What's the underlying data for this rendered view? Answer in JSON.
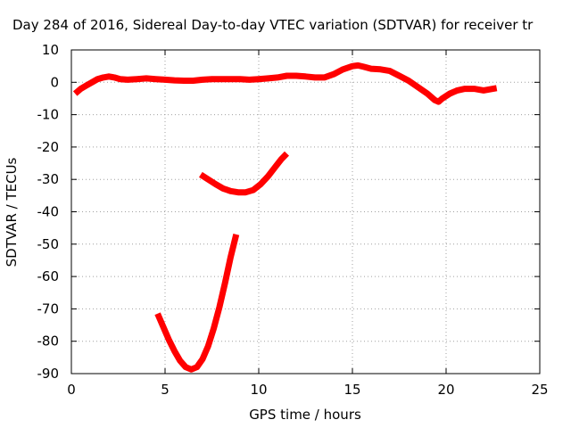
{
  "chart_data": {
    "type": "line",
    "title": "Day 284 of 2016, Sidereal Day-to-day VTEC variation (SDTVAR) for receiver tr",
    "xlabel": "GPS time / hours",
    "ylabel": "SDTVAR / TECUs",
    "xlim": [
      0,
      25
    ],
    "ylim": [
      -90,
      10
    ],
    "x_ticks": [
      0,
      5,
      10,
      15,
      20,
      25
    ],
    "x_tick_labels": [
      "0",
      "5",
      "10",
      "15",
      "20",
      "25"
    ],
    "y_ticks": [
      10,
      0,
      -10,
      -20,
      -30,
      -40,
      -50,
      -60,
      -70,
      -80,
      -90
    ],
    "y_tick_labels": [
      "10",
      "0",
      "-10",
      "-20",
      "-30",
      "-40",
      "-50",
      "-60",
      "-70",
      "-80",
      "-90"
    ],
    "grid": true,
    "grid_style": "dotted",
    "legend": "none",
    "series_color": "#ff0000",
    "series": [
      {
        "values": [
          [
            0.2,
            -3.5
          ],
          [
            0.5,
            -2.0
          ],
          [
            0.8,
            -1.0
          ],
          [
            1.1,
            0.0
          ],
          [
            1.4,
            1.0
          ],
          [
            1.7,
            1.5
          ],
          [
            2.0,
            1.8
          ],
          [
            2.3,
            1.5
          ],
          [
            2.6,
            1.0
          ],
          [
            3.0,
            0.8
          ],
          [
            3.5,
            1.0
          ],
          [
            4.0,
            1.2
          ],
          [
            4.5,
            1.0
          ],
          [
            5.0,
            0.8
          ],
          [
            5.5,
            0.6
          ],
          [
            6.0,
            0.5
          ],
          [
            6.5,
            0.5
          ],
          [
            7.0,
            0.8
          ],
          [
            7.5,
            1.0
          ],
          [
            8.0,
            1.0
          ],
          [
            8.5,
            1.0
          ],
          [
            9.0,
            1.0
          ],
          [
            9.5,
            0.8
          ],
          [
            10.0,
            1.0
          ],
          [
            10.5,
            1.2
          ],
          [
            11.0,
            1.5
          ],
          [
            11.5,
            2.0
          ],
          [
            12.0,
            2.0
          ],
          [
            12.5,
            1.8
          ],
          [
            13.0,
            1.5
          ],
          [
            13.5,
            1.5
          ],
          [
            14.0,
            2.5
          ],
          [
            14.5,
            4.0
          ],
          [
            15.0,
            5.0
          ],
          [
            15.3,
            5.2
          ],
          [
            15.6,
            4.8
          ],
          [
            16.0,
            4.2
          ],
          [
            16.5,
            4.0
          ],
          [
            17.0,
            3.5
          ],
          [
            17.5,
            2.0
          ],
          [
            18.0,
            0.5
          ],
          [
            18.5,
            -1.5
          ],
          [
            19.0,
            -3.5
          ],
          [
            19.4,
            -5.5
          ],
          [
            19.6,
            -6.0
          ],
          [
            19.8,
            -5.0
          ],
          [
            20.2,
            -3.5
          ],
          [
            20.6,
            -2.5
          ],
          [
            21.0,
            -2.0
          ],
          [
            21.5,
            -2.0
          ],
          [
            22.0,
            -2.5
          ],
          [
            22.3,
            -2.2
          ],
          [
            22.7,
            -1.8
          ]
        ]
      },
      {
        "values": [
          [
            6.9,
            -28.5
          ],
          [
            7.3,
            -30.0
          ],
          [
            7.7,
            -31.5
          ],
          [
            8.1,
            -32.8
          ],
          [
            8.5,
            -33.6
          ],
          [
            8.9,
            -34.0
          ],
          [
            9.3,
            -34.0
          ],
          [
            9.7,
            -33.3
          ],
          [
            10.1,
            -31.5
          ],
          [
            10.5,
            -29.0
          ],
          [
            10.9,
            -26.0
          ],
          [
            11.2,
            -23.8
          ],
          [
            11.5,
            -22.0
          ]
        ]
      },
      {
        "values": [
          [
            4.6,
            -71.5
          ],
          [
            4.9,
            -75.5
          ],
          [
            5.2,
            -79.5
          ],
          [
            5.5,
            -83.0
          ],
          [
            5.8,
            -86.0
          ],
          [
            6.1,
            -88.0
          ],
          [
            6.4,
            -88.7
          ],
          [
            6.7,
            -88.0
          ],
          [
            7.0,
            -85.5
          ],
          [
            7.3,
            -81.5
          ],
          [
            7.6,
            -76.0
          ],
          [
            7.9,
            -69.5
          ],
          [
            8.2,
            -62.0
          ],
          [
            8.5,
            -54.0
          ],
          [
            8.8,
            -47.0
          ]
        ]
      }
    ]
  }
}
